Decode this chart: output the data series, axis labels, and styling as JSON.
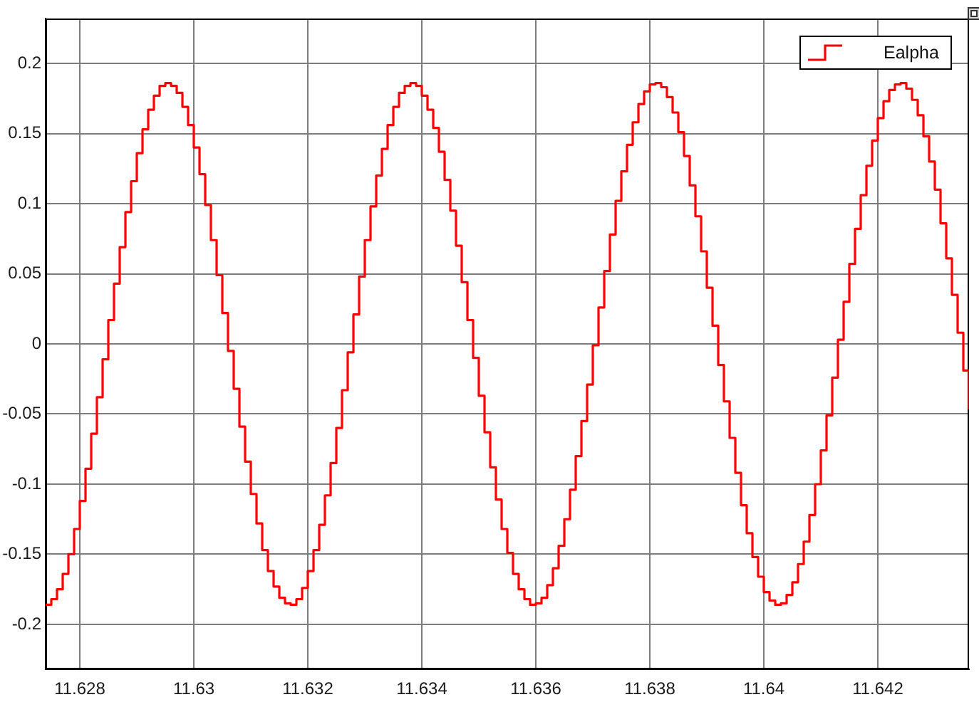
{
  "chart_data": {
    "type": "step",
    "x": [
      11.6274,
      11.6275,
      11.6276,
      11.6277,
      11.6278,
      11.6279,
      11.628,
      11.6281,
      11.6282,
      11.6283,
      11.6284,
      11.6285,
      11.6286,
      11.6287,
      11.6288,
      11.6289,
      11.629,
      11.6291,
      11.6292,
      11.6293,
      11.6294,
      11.6295,
      11.6296,
      11.6297,
      11.6298,
      11.6299,
      11.63,
      11.6301,
      11.6302,
      11.6303,
      11.6304,
      11.6305,
      11.6306,
      11.6307,
      11.6308,
      11.6309,
      11.631,
      11.6311,
      11.6312,
      11.6313,
      11.6314,
      11.6315,
      11.6316,
      11.6317,
      11.6318,
      11.6319,
      11.632,
      11.6321,
      11.6322,
      11.6323,
      11.6324,
      11.6325,
      11.6326,
      11.6327,
      11.6328,
      11.6329,
      11.633,
      11.6331,
      11.6332,
      11.6333,
      11.6334,
      11.6335,
      11.6336,
      11.6337,
      11.6338,
      11.6339,
      11.634,
      11.6341,
      11.6342,
      11.6343,
      11.6344,
      11.6345,
      11.6346,
      11.6347,
      11.6348,
      11.6349,
      11.635,
      11.6351,
      11.6352,
      11.6353,
      11.6354,
      11.6355,
      11.6356,
      11.6357,
      11.6358,
      11.6359,
      11.636,
      11.6361,
      11.6362,
      11.6363,
      11.6364,
      11.6365,
      11.6366,
      11.6367,
      11.6368,
      11.6369,
      11.637,
      11.6371,
      11.6372,
      11.6373,
      11.6374,
      11.6375,
      11.6376,
      11.6377,
      11.6378,
      11.6379,
      11.638,
      11.6381,
      11.6382,
      11.6383,
      11.6384,
      11.6385,
      11.6386,
      11.6387,
      11.6388,
      11.6389,
      11.639,
      11.6391,
      11.6392,
      11.6393,
      11.6394,
      11.6395,
      11.6396,
      11.6397,
      11.6398,
      11.6399,
      11.64,
      11.6401,
      11.6402,
      11.6403,
      11.6404,
      11.6405,
      11.6406,
      11.6407,
      11.6408,
      11.6409,
      11.641,
      11.6411,
      11.6412,
      11.6413,
      11.6414,
      11.6415,
      11.6416,
      11.6417,
      11.6418,
      11.6419,
      11.642,
      11.6421,
      11.6422,
      11.6423,
      11.6424,
      11.6425,
      11.6426,
      11.6427,
      11.6428,
      11.6429,
      11.643,
      11.6431,
      11.6432,
      11.6433,
      11.6434,
      11.6435,
      11.6436
    ],
    "series": [
      {
        "name": "Ealpha",
        "color": "#ff0000",
        "values": [
          -0.186,
          -0.182,
          -0.175,
          -0.164,
          -0.15,
          -0.132,
          -0.112,
          -0.089,
          -0.064,
          -0.038,
          -0.011,
          0.017,
          0.043,
          0.069,
          0.094,
          0.116,
          0.136,
          0.153,
          0.167,
          0.177,
          0.184,
          0.186,
          0.184,
          0.179,
          0.169,
          0.156,
          0.14,
          0.121,
          0.099,
          0.074,
          0.049,
          0.022,
          -0.005,
          -0.032,
          -0.059,
          -0.084,
          -0.107,
          -0.128,
          -0.147,
          -0.162,
          -0.173,
          -0.181,
          -0.185,
          -0.186,
          -0.182,
          -0.174,
          -0.162,
          -0.147,
          -0.129,
          -0.108,
          -0.085,
          -0.06,
          -0.033,
          -0.006,
          0.021,
          0.048,
          0.074,
          0.098,
          0.12,
          0.139,
          0.156,
          0.169,
          0.179,
          0.184,
          0.186,
          0.184,
          0.177,
          0.167,
          0.154,
          0.137,
          0.117,
          0.095,
          0.07,
          0.044,
          0.017,
          -0.01,
          -0.037,
          -0.063,
          -0.088,
          -0.111,
          -0.132,
          -0.149,
          -0.164,
          -0.175,
          -0.182,
          -0.186,
          -0.185,
          -0.181,
          -0.172,
          -0.16,
          -0.144,
          -0.125,
          -0.104,
          -0.08,
          -0.055,
          -0.029,
          -0.001,
          0.026,
          0.052,
          0.078,
          0.102,
          0.123,
          0.142,
          0.158,
          0.171,
          0.18,
          0.185,
          0.186,
          0.183,
          0.176,
          0.165,
          0.151,
          0.134,
          0.113,
          0.091,
          0.066,
          0.04,
          0.013,
          -0.015,
          -0.041,
          -0.067,
          -0.092,
          -0.115,
          -0.135,
          -0.152,
          -0.166,
          -0.177,
          -0.183,
          -0.186,
          -0.185,
          -0.179,
          -0.17,
          -0.157,
          -0.141,
          -0.122,
          -0.1,
          -0.076,
          -0.051,
          -0.024,
          0.003,
          0.03,
          0.057,
          0.082,
          0.106,
          0.127,
          0.145,
          0.161,
          0.173,
          0.181,
          0.185,
          0.186,
          0.182,
          0.174,
          0.163,
          0.148,
          0.13,
          0.11,
          0.086,
          0.061,
          0.035,
          0.008,
          -0.019,
          -0.046
        ]
      }
    ],
    "xlim": [
      11.6274,
      11.6436
    ],
    "ylim": [
      -0.232,
      0.232
    ],
    "xticks": [
      11.628,
      11.63,
      11.632,
      11.634,
      11.636,
      11.638,
      11.64,
      11.642
    ],
    "yticks": [
      -0.2,
      -0.15,
      -0.1,
      -0.05,
      0,
      0.05,
      0.1,
      0.15,
      0.2
    ],
    "grid": true,
    "legend": "top right",
    "marker": "none",
    "line_style": "solid"
  }
}
